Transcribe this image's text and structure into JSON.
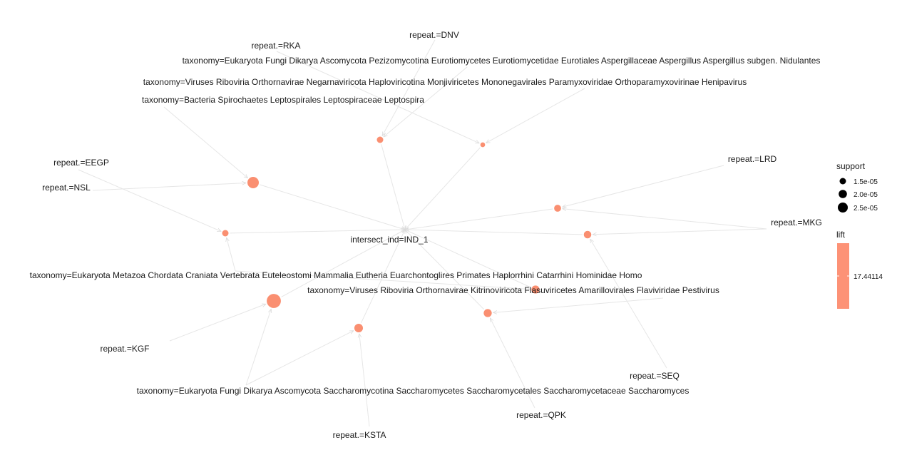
{
  "graph": {
    "center": "intersect_ind=IND_1",
    "items": [
      "repeat.=DNV",
      "repeat.=RKA",
      "taxonomy=Eukaryota Fungi Dikarya Ascomycota Pezizomycotina Eurotiomycetes Eurotiomycetidae Eurotiales Aspergillaceae Aspergillus Aspergillus subgen. Nidulantes",
      "taxonomy=Viruses Riboviria Orthornavirae Negarnaviricota Haploviricotina Monjiviricetes Mononegavirales Paramyxoviridae Orthoparamyxovirinae Henipavirus",
      "taxonomy=Bacteria Spirochaetes Leptospirales Leptospiraceae Leptospira",
      "repeat.=EEGP",
      "repeat.=NSL",
      "repeat.=LRD",
      "repeat.=MKG",
      "taxonomy=Eukaryota Metazoa Chordata Craniata Vertebrata Euteleostomi Mammalia Eutheria Euarchontoglires Primates Haplorrhini Catarrhini Hominidae Homo",
      "taxonomy=Viruses Riboviria Orthornavirae Kitrinoviricota Flasuviricetes Amarillovirales Flaviviridae Pestivirus",
      "repeat.=KGF",
      "repeat.=SEQ",
      "taxonomy=Eukaryota Fungi Dikarya Ascomycota Saccharomycotina Saccharomycetes Saccharomycetales Saccharomycetaceae Saccharomyces",
      "repeat.=QPK",
      "repeat.=KSTA"
    ],
    "rules": [
      {
        "id": "r1",
        "support": 1.5e-05,
        "from": [
          "repeat.=DNV",
          "taxonomy=Eukaryota Fungi Dikarya Ascomycota Pezizomycotina Eurotiomycetes Eurotiomycetidae Eurotiales Aspergillaceae Aspergillus Aspergillus subgen. Nidulantes"
        ]
      },
      {
        "id": "r2",
        "support": 1.2e-05,
        "from": [
          "taxonomy=Viruses Riboviria Orthornavirae Negarnaviricota Haploviricotina Monjiviricetes Mononegavirales Paramyxoviridae Orthoparamyxovirinae Henipavirus",
          "repeat.=RKA"
        ]
      },
      {
        "id": "r3",
        "support": 2.4e-05,
        "from": [
          "taxonomy=Bacteria Spirochaetes Leptospirales Leptospiraceae Leptospira",
          "repeat.=NSL"
        ]
      },
      {
        "id": "r4",
        "support": 1.5e-05,
        "from": [
          "repeat.=EEGP",
          "taxonomy=Eukaryota Metazoa Chordata Craniata Vertebrata Euteleostomi Mammalia Eutheria Euarchontoglires Primates Haplorrhini Catarrhini Hominidae Homo"
        ]
      },
      {
        "id": "r5",
        "support": 1.6e-05,
        "from": [
          "repeat.=LRD",
          "repeat.=MKG"
        ]
      },
      {
        "id": "r6",
        "support": 1.7e-05,
        "from": [
          "repeat.=MKG",
          "repeat.=SEQ"
        ]
      },
      {
        "id": "r7",
        "support": 2.9e-05,
        "from": [
          "repeat.=KGF",
          "taxonomy=Eukaryota Fungi Dikarya Ascomycota Saccharomycotina Saccharomycetes Saccharomycetales Saccharomycetaceae Saccharomyces"
        ]
      },
      {
        "id": "r8",
        "support": 1.9e-05,
        "from": [
          "taxonomy=Eukaryota Fungi Dikarya Ascomycota Saccharomycotina Saccharomycetes Saccharomycetales Saccharomycetaceae Saccharomyces",
          "repeat.=KSTA"
        ]
      },
      {
        "id": "r9",
        "support": 1.8e-05,
        "from": [
          "repeat.=QPK",
          "taxonomy=Viruses Riboviria Orthornavirae Kitrinoviricota Flasuviricetes Amarillovirales Flaviviridae Pestivirus"
        ]
      },
      {
        "id": "r10",
        "support": 1.8e-05,
        "from": [
          "taxonomy=Eukaryota Metazoa Chordata Craniata Vertebrata Euteleostomi Mammalia Eutheria Euarchontoglires Primates Haplorrhini Catarrhini Hominidae Homo"
        ]
      }
    ],
    "node_color": "#fa8f71",
    "edge_color": "#e6e6e6"
  },
  "legend": {
    "support_title": "support",
    "support_entries": [
      "1.5e-05",
      "2.0e-05",
      "2.5e-05"
    ],
    "lift_title": "lift",
    "lift_value": "17.44114",
    "lift_color": "#fd9276"
  }
}
